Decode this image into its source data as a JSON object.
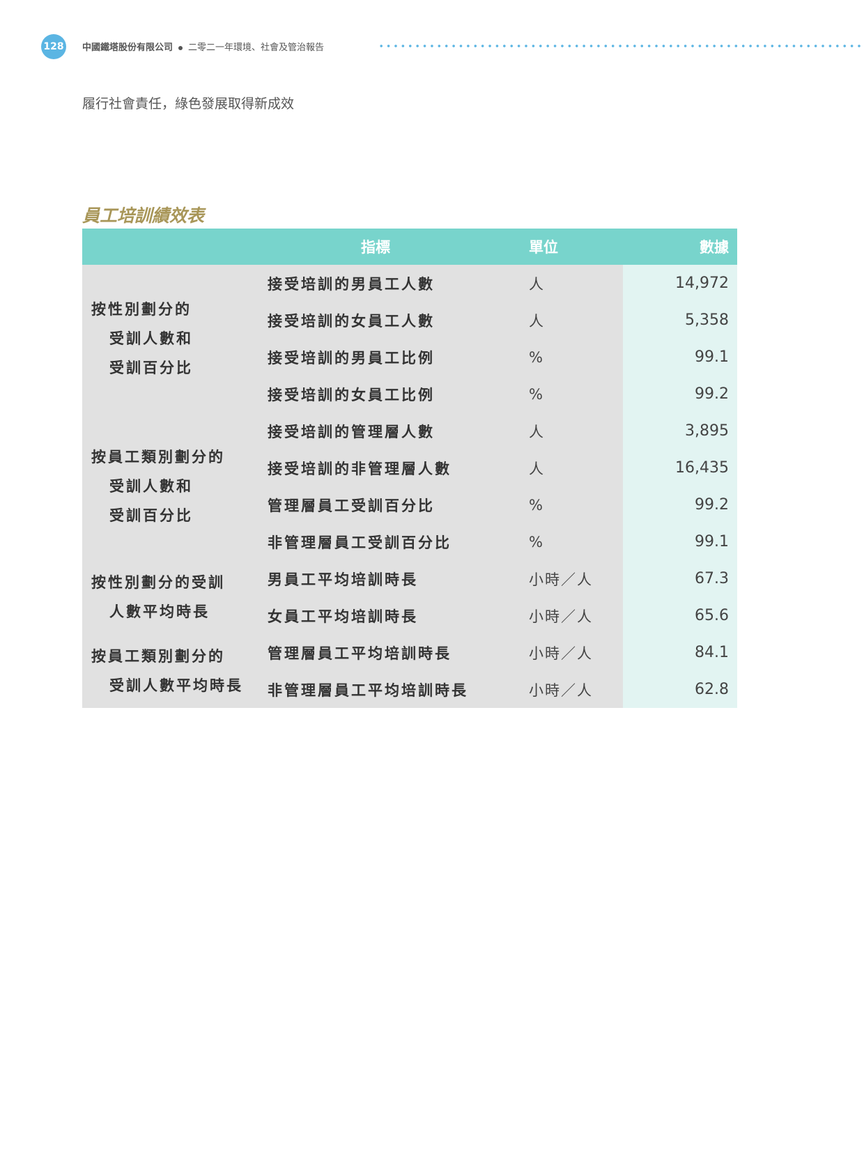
{
  "header": {
    "page_number": "128",
    "company": "中國鐵塔股份有限公司",
    "report": "二零二一年環境、社會及管治報告"
  },
  "section_title": "履行社會責任，綠色發展取得新成效",
  "table": {
    "title": "員工培訓績效表",
    "columns": [
      "",
      "指標",
      "單位",
      "數據"
    ],
    "groups": [
      {
        "label_lines": [
          "按性別劃分的",
          "受訓人數和",
          "受訓百分比"
        ],
        "rows": [
          {
            "indicator": "接受培訓的男員工人數",
            "unit": "人",
            "value": "14,972"
          },
          {
            "indicator": "接受培訓的女員工人數",
            "unit": "人",
            "value": "5,358"
          },
          {
            "indicator": "接受培訓的男員工比例",
            "unit": "%",
            "value": "99.1"
          },
          {
            "indicator": "接受培訓的女員工比例",
            "unit": "%",
            "value": "99.2"
          }
        ]
      },
      {
        "label_lines": [
          "按員工類別劃分的",
          "受訓人數和",
          "受訓百分比"
        ],
        "rows": [
          {
            "indicator": "接受培訓的管理層人數",
            "unit": "人",
            "value": "3,895"
          },
          {
            "indicator": "接受培訓的非管理層人數",
            "unit": "人",
            "value": "16,435"
          },
          {
            "indicator": "管理層員工受訓百分比",
            "unit": "%",
            "value": "99.2"
          },
          {
            "indicator": "非管理層員工受訓百分比",
            "unit": "%",
            "value": "99.1"
          }
        ]
      },
      {
        "label_lines": [
          "按性別劃分的受訓",
          "人數平均時長"
        ],
        "rows": [
          {
            "indicator": "男員工平均培訓時長",
            "unit": "小時／人",
            "value": "67.3"
          },
          {
            "indicator": "女員工平均培訓時長",
            "unit": "小時／人",
            "value": "65.6"
          }
        ]
      },
      {
        "label_lines": [
          "按員工類別劃分的",
          "受訓人數平均時長"
        ],
        "rows": [
          {
            "indicator": "管理層員工平均培訓時長",
            "unit": "小時／人",
            "value": "84.1"
          },
          {
            "indicator": "非管理層員工平均培訓時長",
            "unit": "小時／人",
            "value": "62.8"
          }
        ]
      }
    ]
  }
}
